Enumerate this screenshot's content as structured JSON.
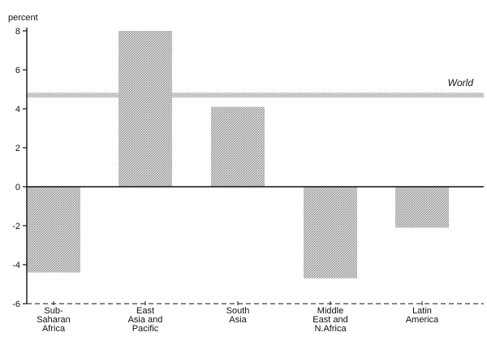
{
  "chart_data": {
    "type": "bar",
    "ylabel": "percent",
    "xlabel": "",
    "title": "",
    "ylim": [
      -6,
      8
    ],
    "yticks": [
      -6,
      -4,
      -2,
      0,
      2,
      4,
      6,
      8
    ],
    "categories": [
      [
        "Sub-",
        "Saharan",
        "Africa"
      ],
      [
        "East",
        "Asia and",
        "Pacific"
      ],
      [
        "South",
        "Asia"
      ],
      [
        "Middle",
        "East and",
        "N.Africa"
      ],
      [
        "Latin",
        "America"
      ]
    ],
    "values": [
      -4.4,
      8.0,
      4.1,
      -4.7,
      -2.1
    ],
    "reference_line": {
      "label": "World",
      "value": 4.7
    },
    "grid": false,
    "legend": "none",
    "bar_color": "#bdbdbd",
    "line_color": "#c8c8c8"
  }
}
